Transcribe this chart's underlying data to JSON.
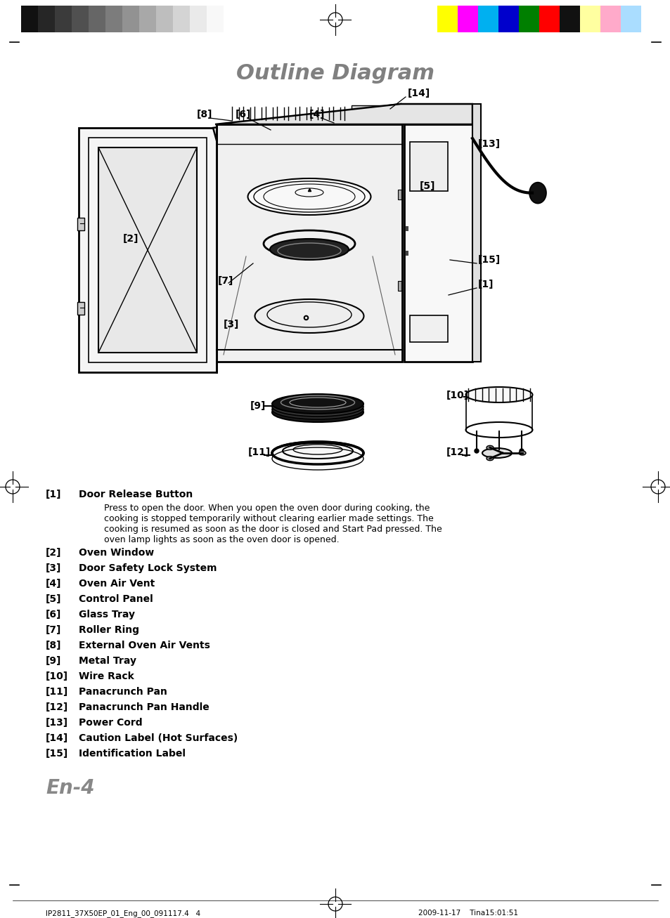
{
  "title": "Outline Diagram",
  "title_fontsize": 22,
  "title_color": "#808080",
  "bg_color": "#ffffff",
  "en4_text": "En-4",
  "en4_fontsize": 20,
  "en4_color": "#888888",
  "footer_left": "IP2811_37X50EP_01_Eng_00_091117.4   4",
  "footer_right": "2009-11-17    Tina15:01:51",
  "color_bars_left": [
    "#111111",
    "#262626",
    "#3b3b3b",
    "#505050",
    "#666666",
    "#7c7c7c",
    "#929292",
    "#a8a8a8",
    "#bebebe",
    "#d4d4d4",
    "#eaeaea",
    "#f8f8f8"
  ],
  "color_bars_right": [
    "#ffff00",
    "#ff00ff",
    "#00b0f0",
    "#0000cc",
    "#007f00",
    "#ff0000",
    "#111111",
    "#ffffa0",
    "#ffaaca",
    "#aaddff"
  ],
  "items": [
    {
      "num": "[1]",
      "bold": true,
      "title": "Door Release Button",
      "desc": "Press to open the door. When you open the oven door during cooking, the\ncooking is stopped temporarily without clearing earlier made settings. The\ncooking is resumed as soon as the door is closed and Start Pad pressed. The\noven lamp lights as soon as the oven door is opened."
    },
    {
      "num": "[2]",
      "bold": true,
      "title": "Oven Window",
      "desc": ""
    },
    {
      "num": "[3]",
      "bold": true,
      "title": "Door Safety Lock System",
      "desc": ""
    },
    {
      "num": "[4]",
      "bold": false,
      "title": "Oven Air Vent",
      "desc": ""
    },
    {
      "num": "[5]",
      "bold": false,
      "title": "Control Panel",
      "desc": ""
    },
    {
      "num": "[6]",
      "bold": true,
      "title": "Glass Tray",
      "desc": ""
    },
    {
      "num": "[7]",
      "bold": true,
      "title": "Roller Ring",
      "desc": ""
    },
    {
      "num": "[8]",
      "bold": true,
      "title": "External Oven Air Vents",
      "desc": ""
    },
    {
      "num": "[9]",
      "bold": false,
      "title": "Metal Tray",
      "desc": ""
    },
    {
      "num": "[10]",
      "bold": true,
      "title": "Wire Rack",
      "desc": ""
    },
    {
      "num": "[11]",
      "bold": true,
      "title": "Panacrunch Pan",
      "desc": ""
    },
    {
      "num": "[12]",
      "bold": true,
      "title": "Panacrunch Pan Handle",
      "desc": ""
    },
    {
      "num": "[13]",
      "bold": false,
      "title": "Power Cord",
      "desc": ""
    },
    {
      "num": "[14]",
      "bold": true,
      "title": "Caution Label (Hot Surfaces)",
      "desc": ""
    },
    {
      "num": "[15]",
      "bold": true,
      "title": "Identification Label",
      "desc": ""
    }
  ]
}
